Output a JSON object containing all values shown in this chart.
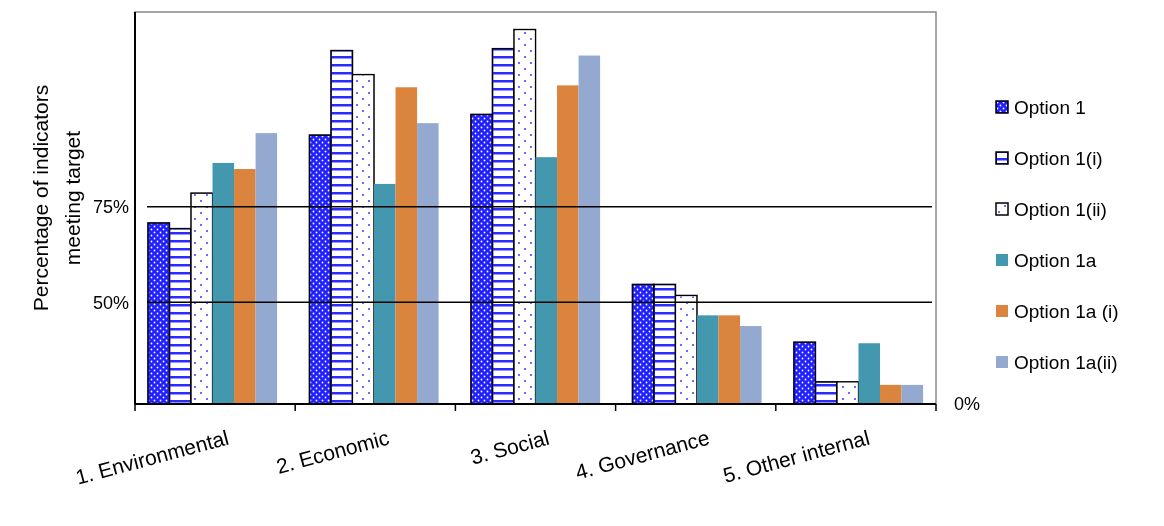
{
  "chart_data": {
    "type": "bar",
    "ylabel": "Percentage of indicators meeting  target",
    "categories": [
      "1. Environmental",
      "2. Economic",
      "3. Social",
      "4. Governance",
      "5. Other internal"
    ],
    "series": [
      {
        "name": "Option 1",
        "color": "#1f1fff",
        "values": [
          70.8,
          93.8,
          99.2,
          54.7,
          39.6
        ]
      },
      {
        "name": "Option 1(i)",
        "color": "#2b2bff",
        "values": [
          69.3,
          115.9,
          116.4,
          54.7,
          29.2
        ]
      },
      {
        "name": "Option 1(ii)",
        "color": "#ffffff",
        "values": [
          78.6,
          109.6,
          121.4,
          51.8,
          29.2
        ]
      },
      {
        "name": "Option 1a",
        "color": "#4398b0",
        "values": [
          86.5,
          81.0,
          88.0,
          46.6,
          39.3
        ]
      },
      {
        "name": "Option 1a (i)",
        "color": "#db843d",
        "values": [
          84.9,
          106.3,
          106.8,
          46.6,
          28.4
        ]
      },
      {
        "name": "Option 1a(ii)",
        "color": "#93a9cf",
        "values": [
          94.3,
          96.9,
          114.6,
          43.8,
          28.4
        ]
      }
    ],
    "ylim": [
      23.4,
      126
    ],
    "yticks": [
      {
        "value": 50,
        "label": "50%"
      },
      {
        "value": 75,
        "label": "75%"
      }
    ],
    "grid": "y",
    "legend": "right",
    "annotations": [
      "0%"
    ]
  }
}
